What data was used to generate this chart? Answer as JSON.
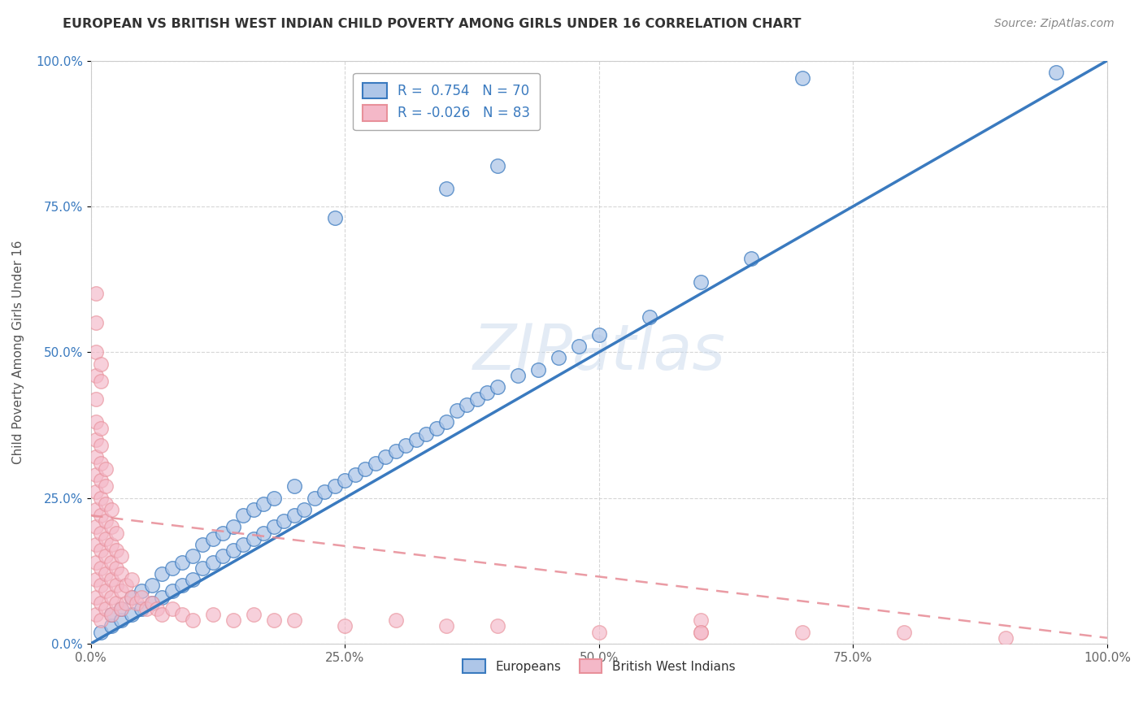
{
  "title": "EUROPEAN VS BRITISH WEST INDIAN CHILD POVERTY AMONG GIRLS UNDER 16 CORRELATION CHART",
  "source": "Source: ZipAtlas.com",
  "ylabel": "Child Poverty Among Girls Under 16",
  "xlim": [
    0,
    1
  ],
  "ylim": [
    0,
    1
  ],
  "xticks": [
    0.0,
    0.25,
    0.5,
    0.75,
    1.0
  ],
  "xticklabels": [
    "0.0%",
    "25.0%",
    "50.0%",
    "75.0%",
    "100.0%"
  ],
  "yticks": [
    0.0,
    0.25,
    0.5,
    0.75,
    1.0
  ],
  "yticklabels": [
    "0.0%",
    "25.0%",
    "50.0%",
    "75.0%",
    "100.0%"
  ],
  "watermark": "ZIPatlas",
  "legend_R_blue": "0.754",
  "legend_N_blue": "70",
  "legend_R_pink": "-0.026",
  "legend_N_pink": "83",
  "blue_color": "#aec6e8",
  "pink_color": "#f4b8c8",
  "blue_line_color": "#3a7abf",
  "pink_line_color": "#e8909a",
  "blue_scatter": [
    [
      0.01,
      0.02
    ],
    [
      0.02,
      0.03
    ],
    [
      0.02,
      0.05
    ],
    [
      0.03,
      0.04
    ],
    [
      0.03,
      0.06
    ],
    [
      0.04,
      0.05
    ],
    [
      0.04,
      0.08
    ],
    [
      0.05,
      0.06
    ],
    [
      0.05,
      0.09
    ],
    [
      0.06,
      0.07
    ],
    [
      0.06,
      0.1
    ],
    [
      0.07,
      0.08
    ],
    [
      0.07,
      0.12
    ],
    [
      0.08,
      0.09
    ],
    [
      0.08,
      0.13
    ],
    [
      0.09,
      0.1
    ],
    [
      0.09,
      0.14
    ],
    [
      0.1,
      0.11
    ],
    [
      0.1,
      0.15
    ],
    [
      0.11,
      0.13
    ],
    [
      0.11,
      0.17
    ],
    [
      0.12,
      0.14
    ],
    [
      0.12,
      0.18
    ],
    [
      0.13,
      0.15
    ],
    [
      0.13,
      0.19
    ],
    [
      0.14,
      0.16
    ],
    [
      0.14,
      0.2
    ],
    [
      0.15,
      0.17
    ],
    [
      0.15,
      0.22
    ],
    [
      0.16,
      0.18
    ],
    [
      0.16,
      0.23
    ],
    [
      0.17,
      0.19
    ],
    [
      0.17,
      0.24
    ],
    [
      0.18,
      0.2
    ],
    [
      0.18,
      0.25
    ],
    [
      0.19,
      0.21
    ],
    [
      0.2,
      0.22
    ],
    [
      0.2,
      0.27
    ],
    [
      0.21,
      0.23
    ],
    [
      0.22,
      0.25
    ],
    [
      0.23,
      0.26
    ],
    [
      0.24,
      0.27
    ],
    [
      0.25,
      0.28
    ],
    [
      0.26,
      0.29
    ],
    [
      0.27,
      0.3
    ],
    [
      0.28,
      0.31
    ],
    [
      0.29,
      0.32
    ],
    [
      0.3,
      0.33
    ],
    [
      0.31,
      0.34
    ],
    [
      0.32,
      0.35
    ],
    [
      0.33,
      0.36
    ],
    [
      0.34,
      0.37
    ],
    [
      0.35,
      0.38
    ],
    [
      0.36,
      0.4
    ],
    [
      0.37,
      0.41
    ],
    [
      0.38,
      0.42
    ],
    [
      0.39,
      0.43
    ],
    [
      0.4,
      0.44
    ],
    [
      0.42,
      0.46
    ],
    [
      0.44,
      0.47
    ],
    [
      0.46,
      0.49
    ],
    [
      0.48,
      0.51
    ],
    [
      0.5,
      0.53
    ],
    [
      0.55,
      0.56
    ],
    [
      0.6,
      0.62
    ],
    [
      0.65,
      0.66
    ],
    [
      0.24,
      0.73
    ],
    [
      0.35,
      0.78
    ],
    [
      0.4,
      0.82
    ],
    [
      0.7,
      0.97
    ],
    [
      0.95,
      0.98
    ]
  ],
  "pink_scatter": [
    [
      0.005,
      0.05
    ],
    [
      0.005,
      0.08
    ],
    [
      0.005,
      0.11
    ],
    [
      0.005,
      0.14
    ],
    [
      0.005,
      0.17
    ],
    [
      0.005,
      0.2
    ],
    [
      0.005,
      0.23
    ],
    [
      0.005,
      0.26
    ],
    [
      0.005,
      0.29
    ],
    [
      0.005,
      0.32
    ],
    [
      0.005,
      0.35
    ],
    [
      0.005,
      0.38
    ],
    [
      0.005,
      0.42
    ],
    [
      0.005,
      0.46
    ],
    [
      0.005,
      0.5
    ],
    [
      0.01,
      0.04
    ],
    [
      0.01,
      0.07
    ],
    [
      0.01,
      0.1
    ],
    [
      0.01,
      0.13
    ],
    [
      0.01,
      0.16
    ],
    [
      0.01,
      0.19
    ],
    [
      0.01,
      0.22
    ],
    [
      0.01,
      0.25
    ],
    [
      0.01,
      0.28
    ],
    [
      0.01,
      0.31
    ],
    [
      0.01,
      0.34
    ],
    [
      0.01,
      0.37
    ],
    [
      0.015,
      0.06
    ],
    [
      0.015,
      0.09
    ],
    [
      0.015,
      0.12
    ],
    [
      0.015,
      0.15
    ],
    [
      0.015,
      0.18
    ],
    [
      0.015,
      0.21
    ],
    [
      0.015,
      0.24
    ],
    [
      0.015,
      0.27
    ],
    [
      0.02,
      0.05
    ],
    [
      0.02,
      0.08
    ],
    [
      0.02,
      0.11
    ],
    [
      0.02,
      0.14
    ],
    [
      0.02,
      0.17
    ],
    [
      0.02,
      0.2
    ],
    [
      0.025,
      0.07
    ],
    [
      0.025,
      0.1
    ],
    [
      0.025,
      0.13
    ],
    [
      0.025,
      0.16
    ],
    [
      0.03,
      0.06
    ],
    [
      0.03,
      0.09
    ],
    [
      0.03,
      0.12
    ],
    [
      0.035,
      0.07
    ],
    [
      0.035,
      0.1
    ],
    [
      0.04,
      0.08
    ],
    [
      0.04,
      0.11
    ],
    [
      0.045,
      0.07
    ],
    [
      0.05,
      0.08
    ],
    [
      0.055,
      0.06
    ],
    [
      0.06,
      0.07
    ],
    [
      0.065,
      0.06
    ],
    [
      0.07,
      0.05
    ],
    [
      0.08,
      0.06
    ],
    [
      0.09,
      0.05
    ],
    [
      0.1,
      0.04
    ],
    [
      0.12,
      0.05
    ],
    [
      0.14,
      0.04
    ],
    [
      0.16,
      0.05
    ],
    [
      0.18,
      0.04
    ],
    [
      0.2,
      0.04
    ],
    [
      0.25,
      0.03
    ],
    [
      0.3,
      0.04
    ],
    [
      0.35,
      0.03
    ],
    [
      0.4,
      0.03
    ],
    [
      0.5,
      0.02
    ],
    [
      0.6,
      0.02
    ],
    [
      0.7,
      0.02
    ],
    [
      0.8,
      0.02
    ],
    [
      0.9,
      0.01
    ],
    [
      0.005,
      0.55
    ],
    [
      0.005,
      0.6
    ],
    [
      0.01,
      0.45
    ],
    [
      0.01,
      0.48
    ],
    [
      0.015,
      0.3
    ],
    [
      0.02,
      0.23
    ],
    [
      0.025,
      0.19
    ],
    [
      0.03,
      0.15
    ],
    [
      0.6,
      0.04
    ],
    [
      0.6,
      0.02
    ]
  ],
  "blue_line": [
    [
      0.0,
      0.0
    ],
    [
      1.0,
      1.0
    ]
  ],
  "pink_line": [
    [
      0.0,
      0.22
    ],
    [
      1.0,
      0.01
    ]
  ]
}
